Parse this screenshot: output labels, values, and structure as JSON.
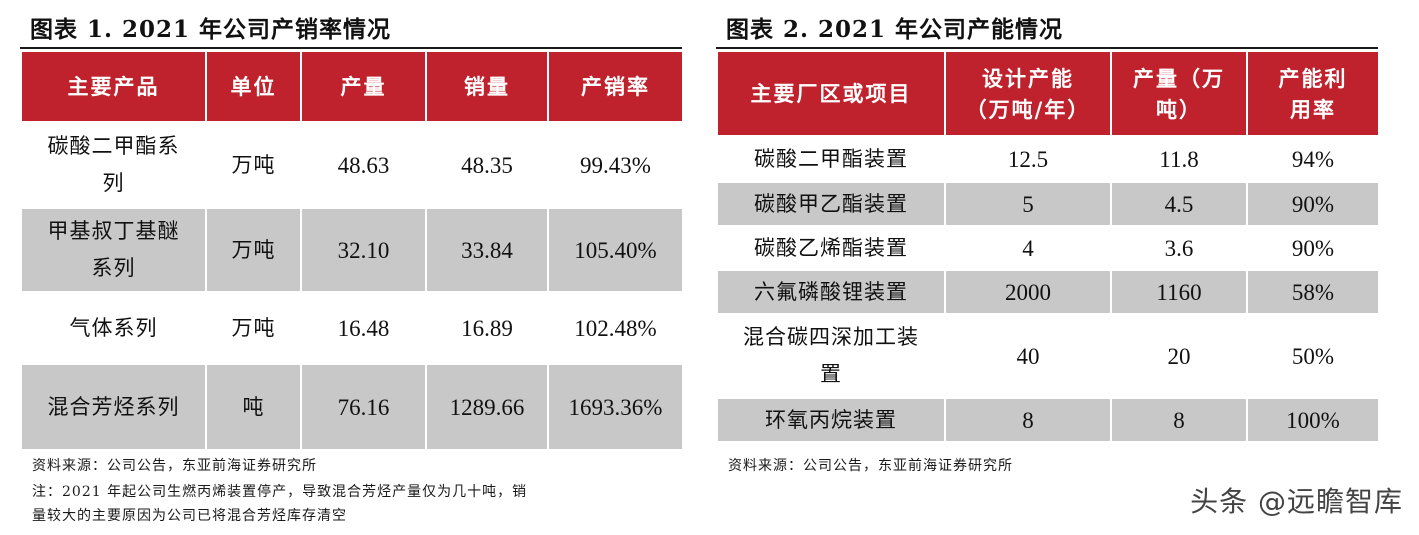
{
  "figure1": {
    "title": "图表 1.   2021 年公司产销率情况",
    "headers": [
      "主要产品",
      "单位",
      "产量",
      "销量",
      "产销率"
    ],
    "rows": [
      [
        "碳酸二甲酯系列",
        "万吨",
        "48.63",
        "48.35",
        "99.43%"
      ],
      [
        "甲基叔丁基醚系列",
        "万吨",
        "32.10",
        "33.84",
        "105.40%"
      ],
      [
        "气体系列",
        "万吨",
        "16.48",
        "16.89",
        "102.48%"
      ],
      [
        "混合芳烃系列",
        "吨",
        "76.16",
        "1289.66",
        "1693.36%"
      ]
    ],
    "source": "资料来源：公司公告，东亚前海证券研究所",
    "note_line1": "注：2021 年起公司生燃丙烯装置停产，导致混合芳烃产量仅为几十吨，销",
    "note_line2": "量较大的主要原因为公司已将混合芳烃库存清空"
  },
  "figure2": {
    "title": "图表 2.   2021 年公司产能情况",
    "headers": [
      "主要厂区或项目",
      "设计产能（万吨/年）",
      "产量（万吨）",
      "产能利用率"
    ],
    "rows": [
      [
        "碳酸二甲酯装置",
        "12.5",
        "11.8",
        "94%"
      ],
      [
        "碳酸甲乙酯装置",
        "5",
        "4.5",
        "90%"
      ],
      [
        "碳酸乙烯酯装置",
        "4",
        "3.6",
        "90%"
      ],
      [
        "六氟磷酸锂装置",
        "2000",
        "1160",
        "58%"
      ],
      [
        "混合碳四深加工装置",
        "40",
        "20",
        "50%"
      ],
      [
        "环氧丙烷装置",
        "8",
        "8",
        "100%"
      ]
    ],
    "source": "资料来源：公司公告，东亚前海证券研究所"
  },
  "watermark": "头条 @远瞻智库",
  "colors": {
    "header_red": "#c0222d",
    "row_gray": "#c8c8c8"
  }
}
